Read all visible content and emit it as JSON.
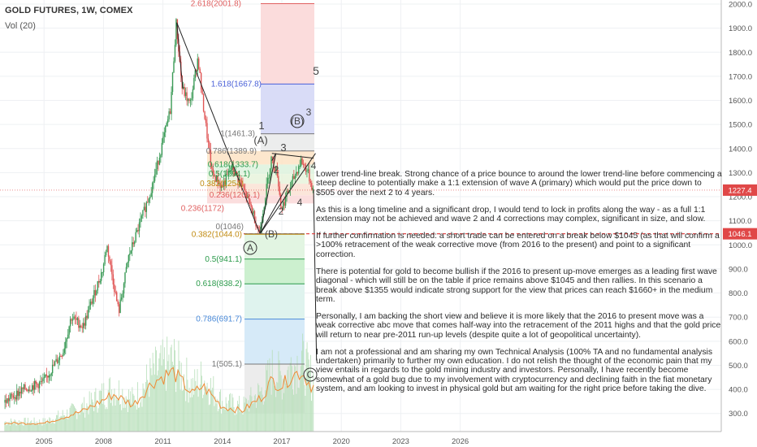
{
  "header": {
    "title": "GOLD FUTURES, 1W, COMEX",
    "volume_label": "Vol (20)"
  },
  "chart_data": {
    "type": "line",
    "title": "GOLD FUTURES, 1W, COMEX",
    "x_ticks": [
      "2005",
      "2008",
      "2011",
      "2014",
      "2017",
      "2020",
      "2023",
      "2026"
    ],
    "y_ticks": [
      "2000.0",
      "1900.0",
      "1800.0",
      "1700.0",
      "1600.0",
      "1500.0",
      "1400.0",
      "1300.0",
      "1200.0",
      "1100.0",
      "1000.0",
      "900.0",
      "800.0",
      "700.0",
      "600.0",
      "500.0",
      "400.0",
      "300.0"
    ],
    "ylim": [
      250,
      2020
    ],
    "price": {
      "x": [
        2003.0,
        2004.0,
        2005.0,
        2006.0,
        2006.4,
        2007.0,
        2008.0,
        2008.2,
        2008.8,
        2009.3,
        2010.0,
        2010.5,
        2011.0,
        2011.4,
        2011.7,
        2012.0,
        2012.4,
        2012.8,
        2013.0,
        2013.5,
        2014.0,
        2014.5,
        2015.0,
        2015.5,
        2015.9,
        2016.5,
        2016.8,
        2017.0,
        2017.5,
        2018.0,
        2018.3,
        2018.6
      ],
      "y": [
        345,
        400,
        430,
        560,
        700,
        660,
        900,
        1000,
        720,
        950,
        1120,
        1250,
        1420,
        1560,
        1920,
        1650,
        1580,
        1780,
        1620,
        1300,
        1240,
        1320,
        1250,
        1150,
        1050,
        1360,
        1300,
        1150,
        1250,
        1350,
        1310,
        1230
      ]
    },
    "volume": {
      "x": [
        2003.0,
        2005.0,
        2007.0,
        2008.5,
        2009.5,
        2010.5,
        2011.5,
        2012.5,
        2013.0,
        2014.0,
        2015.0,
        2016.0,
        2016.5,
        2017.0,
        2017.5,
        2018.0,
        2018.5
      ],
      "y": [
        0.1,
        0.1,
        0.25,
        0.45,
        0.32,
        0.6,
        0.72,
        0.45,
        0.55,
        0.3,
        0.25,
        0.42,
        0.62,
        0.55,
        0.68,
        0.72,
        0.55
      ]
    },
    "fib_levels": [
      {
        "label": "2.618(2001.8)",
        "value": 2001.8,
        "color": "#e06060"
      },
      {
        "label": "1.618(1667.8)",
        "value": 1667.8,
        "color": "#4a60d8"
      },
      {
        "label": "1(1461.3)",
        "value": 1461.3,
        "color": "#777777"
      },
      {
        "label": "0.786(1389.9)",
        "value": 1389.9,
        "color": "#777777"
      },
      {
        "label": "0.618(1333.7)",
        "value": 1333.7,
        "color": "#2a9a4a"
      },
      {
        "label": "0.5(1294.1)",
        "value": 1294.1,
        "color": "#2a9a4a"
      },
      {
        "label": "0.382(1254)",
        "value": 1254.0,
        "color": "#c08a10"
      },
      {
        "label": "0.236(1206.1)",
        "value": 1206.1,
        "color": "#e06060"
      },
      {
        "label": "0.236(1172)",
        "value": 1172.0,
        "color": "#e06060"
      },
      {
        "label": "0(1046)",
        "value": 1046.0,
        "color": "#777777"
      },
      {
        "label": "0.382(1044.0)",
        "value": 1044.0,
        "color": "#c08a10"
      },
      {
        "label": "0.5(941.1)",
        "value": 941.1,
        "color": "#2a9a4a"
      },
      {
        "label": "0.618(838.2)",
        "value": 838.2,
        "color": "#2a9a4a"
      },
      {
        "label": "0.786(691.7)",
        "value": 691.7,
        "color": "#4a8ad8"
      },
      {
        "label": "1(505.1)",
        "value": 505.1,
        "color": "#777777"
      }
    ],
    "wave_labels": [
      "5",
      "3",
      "1",
      "(A)",
      "3",
      "(B)",
      "4",
      "2",
      "(B)",
      "A",
      "C",
      "2",
      "4"
    ],
    "price_tags": [
      {
        "label": "1227.4",
        "value": 1227.4,
        "color": "#e04848"
      },
      {
        "label": "1046.1",
        "value": 1046.1,
        "color": "#e04848"
      }
    ]
  },
  "note": [
    "Lower trend-line break. Strong chance of a price bounce to around the lower trend-line before commencing a steep decline to potentially make a 1:1 extension of wave A (primary) which would put the price down to $505 over the next 2 to 4 years.",
    "As this is a long timeline and a significant drop, I would tend to lock in profits along the way - as a full 1:1 extension may not be achieved and wave 2 and 4 corrections may complex, significant in size, and slow.",
    "If further confirmation is needed: a short trade can be entered on a break below $1045 (as that will confirm a >100% retracement of the weak corrective move (from 2016 to the present) and point to a significant correction.",
    "There is potential for gold to become bullish if the 2016 to present up-move emerges as a leading first wave diagonal - which will still be on the table if price remains above $1045 and then rallies. In this scenario a break above $1355 would indicate strong support for the view that prices can reach $1660+ in the medium term.",
    "Personally, I am backing the short view and believe it is more likely that the 2016 to present move was a weak corrective abc move that comes half-way into the retracement of the 2011 highs and that the gold price will return to near pre-2011 run-up levels (despite quite a lot of geopolitical uncertainty).",
    "I am not a professional and am sharing my own Technical Analysis (100% TA and no fundamental analysis undertaken) primarily to further my own education. I do not relish the thought of the economic pain that my view entails in regards to the gold mining industry and investors. Personally, I have recently become somewhat of a gold bug due to my involvement with cryptocurrency and declining faith in the fiat monetary system, and am looking to invest in physical gold but am waiting for the right price before taking the dive."
  ]
}
